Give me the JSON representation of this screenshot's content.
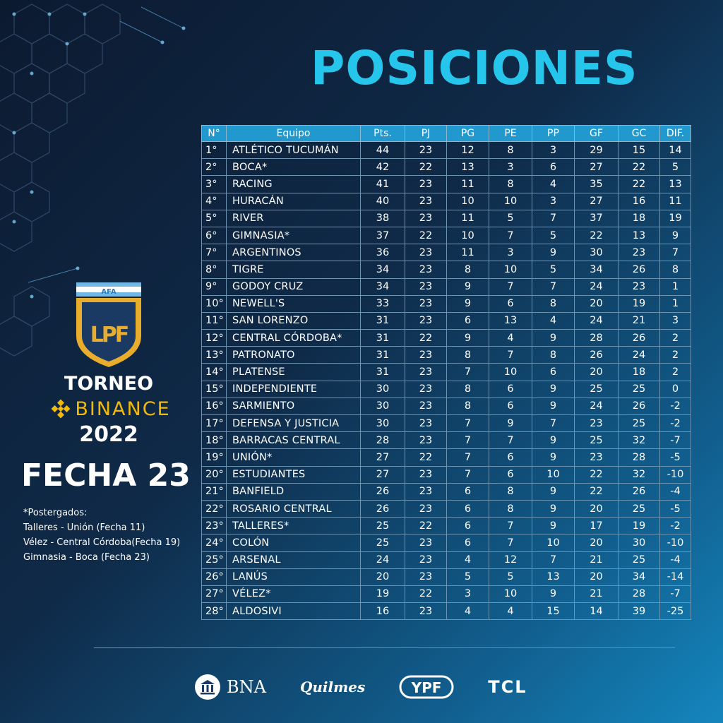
{
  "title": "POSICIONES",
  "table": {
    "headers": [
      "N°",
      "Equipo",
      "Pts.",
      "PJ",
      "PG",
      "PE",
      "PP",
      "GF",
      "GC",
      "DIF."
    ],
    "rows": [
      [
        "1°",
        "ATLÉTICO TUCUMÁN",
        "44",
        "23",
        "12",
        "8",
        "3",
        "29",
        "15",
        "14"
      ],
      [
        "2°",
        "BOCA*",
        "42",
        "22",
        "13",
        "3",
        "6",
        "27",
        "22",
        "5"
      ],
      [
        "3°",
        "RACING",
        "41",
        "23",
        "11",
        "8",
        "4",
        "35",
        "22",
        "13"
      ],
      [
        "4°",
        "HURACÁN",
        "40",
        "23",
        "10",
        "10",
        "3",
        "27",
        "16",
        "11"
      ],
      [
        "5°",
        "RIVER",
        "38",
        "23",
        "11",
        "5",
        "7",
        "37",
        "18",
        "19"
      ],
      [
        "6°",
        "GIMNASIA*",
        "37",
        "22",
        "10",
        "7",
        "5",
        "22",
        "13",
        "9"
      ],
      [
        "7°",
        "ARGENTINOS",
        "36",
        "23",
        "11",
        "3",
        "9",
        "30",
        "23",
        "7"
      ],
      [
        "8°",
        "TIGRE",
        "34",
        "23",
        "8",
        "10",
        "5",
        "34",
        "26",
        "8"
      ],
      [
        "9°",
        "GODOY CRUZ",
        "34",
        "23",
        "9",
        "7",
        "7",
        "24",
        "23",
        "1"
      ],
      [
        "10°",
        "NEWELL'S",
        "33",
        "23",
        "9",
        "6",
        "8",
        "20",
        "19",
        "1"
      ],
      [
        "11°",
        "SAN LORENZO",
        "31",
        "23",
        "6",
        "13",
        "4",
        "24",
        "21",
        "3"
      ],
      [
        "12°",
        "CENTRAL CÓRDOBA*",
        "31",
        "22",
        "9",
        "4",
        "9",
        "28",
        "26",
        "2"
      ],
      [
        "13°",
        "PATRONATO",
        "31",
        "23",
        "8",
        "7",
        "8",
        "26",
        "24",
        "2"
      ],
      [
        "14°",
        "PLATENSE",
        "31",
        "23",
        "7",
        "10",
        "6",
        "20",
        "18",
        "2"
      ],
      [
        "15°",
        "INDEPENDIENTE",
        "30",
        "23",
        "8",
        "6",
        "9",
        "25",
        "25",
        "0"
      ],
      [
        "16°",
        "SARMIENTO",
        "30",
        "23",
        "8",
        "6",
        "9",
        "24",
        "26",
        "-2"
      ],
      [
        "17°",
        "DEFENSA Y JUSTICIA",
        "30",
        "23",
        "7",
        "9",
        "7",
        "23",
        "25",
        "-2"
      ],
      [
        "18°",
        "BARRACAS CENTRAL",
        "28",
        "23",
        "7",
        "7",
        "9",
        "25",
        "32",
        "-7"
      ],
      [
        "19°",
        "UNIÓN*",
        "27",
        "22",
        "7",
        "6",
        "9",
        "23",
        "28",
        "-5"
      ],
      [
        "20°",
        "ESTUDIANTES",
        "27",
        "23",
        "7",
        "6",
        "10",
        "22",
        "32",
        "-10"
      ],
      [
        "21°",
        "BANFIELD",
        "26",
        "23",
        "6",
        "8",
        "9",
        "22",
        "26",
        "-4"
      ],
      [
        "22°",
        "ROSARIO CENTRAL",
        "26",
        "23",
        "6",
        "8",
        "9",
        "20",
        "25",
        "-5"
      ],
      [
        "23°",
        "TALLERES*",
        "25",
        "22",
        "6",
        "7",
        "9",
        "17",
        "19",
        "-2"
      ],
      [
        "24°",
        "COLÓN",
        "25",
        "23",
        "6",
        "7",
        "10",
        "20",
        "30",
        "-10"
      ],
      [
        "25°",
        "ARSENAL",
        "24",
        "23",
        "4",
        "12",
        "7",
        "21",
        "25",
        "-4"
      ],
      [
        "26°",
        "LANÚS",
        "20",
        "23",
        "5",
        "5",
        "13",
        "20",
        "34",
        "-14"
      ],
      [
        "27°",
        "VÉLEZ*",
        "19",
        "22",
        "3",
        "10",
        "9",
        "21",
        "28",
        "-7"
      ],
      [
        "28°",
        "ALDOSIVI",
        "16",
        "23",
        "4",
        "4",
        "15",
        "14",
        "39",
        "-25"
      ]
    ]
  },
  "branding": {
    "shield_top": "AFA",
    "shield_mark": "LPF",
    "torneo": "TORNEO",
    "sponsor_main": "BINANCE",
    "year": "2022"
  },
  "fecha": "FECHA 23",
  "notes": {
    "heading": "*Postergados:",
    "lines": [
      "Talleres - Unión (Fecha 11)",
      "Vélez - Central  Córdoba(Fecha 19)",
      "Gimnasia - Boca (Fecha 23)"
    ]
  },
  "sponsors": {
    "bna": "BNA",
    "quilmes": "Quilmes",
    "ypf": "YPF",
    "tcl": "TCL"
  },
  "colors": {
    "accent": "#26c6ec",
    "header_bg": "#2199cf",
    "binance_gold": "#f0b90b",
    "shield_gold": "#e8ad2c"
  }
}
